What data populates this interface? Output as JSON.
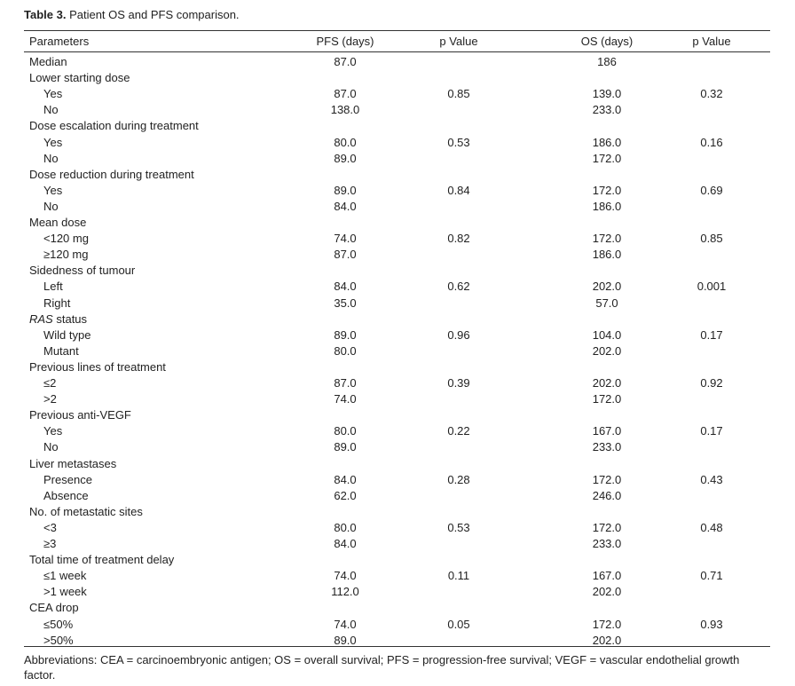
{
  "caption": {
    "label": "Table 3.",
    "text": " Patient OS and PFS comparison."
  },
  "headers": {
    "parameters": "Parameters",
    "pfs": "PFS (days)",
    "pfs_p": "p Value",
    "os": "OS (days)",
    "os_p": "p Value"
  },
  "rows": [
    {
      "param": "Median",
      "sub": false,
      "pfs": "87.0",
      "pfs_p": "",
      "os": "186",
      "os_p": ""
    },
    {
      "param": "Lower starting dose",
      "sub": false,
      "pfs": "",
      "pfs_p": "",
      "os": "",
      "os_p": ""
    },
    {
      "param": "Yes",
      "sub": true,
      "pfs": "87.0",
      "pfs_p": "0.85",
      "os": "139.0",
      "os_p": "0.32"
    },
    {
      "param": "No",
      "sub": true,
      "pfs": "138.0",
      "pfs_p": "",
      "os": "233.0",
      "os_p": ""
    },
    {
      "param": "Dose escalation during treatment",
      "sub": false,
      "pfs": "",
      "pfs_p": "",
      "os": "",
      "os_p": ""
    },
    {
      "param": "Yes",
      "sub": true,
      "pfs": "80.0",
      "pfs_p": "0.53",
      "os": "186.0",
      "os_p": "0.16"
    },
    {
      "param": "No",
      "sub": true,
      "pfs": "89.0",
      "pfs_p": "",
      "os": "172.0",
      "os_p": ""
    },
    {
      "param": "Dose reduction during treatment",
      "sub": false,
      "pfs": "",
      "pfs_p": "",
      "os": "",
      "os_p": ""
    },
    {
      "param": "Yes",
      "sub": true,
      "pfs": "89.0",
      "pfs_p": "0.84",
      "os": "172.0",
      "os_p": "0.69"
    },
    {
      "param": "No",
      "sub": true,
      "pfs": "84.0",
      "pfs_p": "",
      "os": "186.0",
      "os_p": ""
    },
    {
      "param": "Mean dose",
      "sub": false,
      "pfs": "",
      "pfs_p": "",
      "os": "",
      "os_p": ""
    },
    {
      "param": "<120 mg",
      "sub": true,
      "pfs": "74.0",
      "pfs_p": "0.82",
      "os": "172.0",
      "os_p": "0.85"
    },
    {
      "param": "≥120 mg",
      "sub": true,
      "pfs": "87.0",
      "pfs_p": "",
      "os": "186.0",
      "os_p": ""
    },
    {
      "param": "Sidedness of tumour",
      "sub": false,
      "pfs": "",
      "pfs_p": "",
      "os": "",
      "os_p": ""
    },
    {
      "param": "Left",
      "sub": true,
      "pfs": "84.0",
      "pfs_p": "0.62",
      "os": "202.0",
      "os_p": "0.001"
    },
    {
      "param": "Right",
      "sub": true,
      "pfs": "35.0",
      "pfs_p": "",
      "os": "57.0",
      "os_p": ""
    },
    {
      "param": "RAS",
      "param_suffix": " status",
      "italic_prefix": true,
      "sub": false,
      "pfs": "",
      "pfs_p": "",
      "os": "",
      "os_p": ""
    },
    {
      "param": "Wild type",
      "sub": true,
      "pfs": "89.0",
      "pfs_p": "0.96",
      "os": "104.0",
      "os_p": "0.17"
    },
    {
      "param": "Mutant",
      "sub": true,
      "pfs": "80.0",
      "pfs_p": "",
      "os": "202.0",
      "os_p": ""
    },
    {
      "param": "Previous lines of treatment",
      "sub": false,
      "pfs": "",
      "pfs_p": "",
      "os": "",
      "os_p": ""
    },
    {
      "param": "≤2",
      "sub": true,
      "pfs": "87.0",
      "pfs_p": "0.39",
      "os": "202.0",
      "os_p": "0.92"
    },
    {
      "param": ">2",
      "sub": true,
      "pfs": "74.0",
      "pfs_p": "",
      "os": "172.0",
      "os_p": ""
    },
    {
      "param": "Previous anti-VEGF",
      "sub": false,
      "pfs": "",
      "pfs_p": "",
      "os": "",
      "os_p": ""
    },
    {
      "param": "Yes",
      "sub": true,
      "pfs": "80.0",
      "pfs_p": "0.22",
      "os": "167.0",
      "os_p": "0.17"
    },
    {
      "param": "No",
      "sub": true,
      "pfs": "89.0",
      "pfs_p": "",
      "os": "233.0",
      "os_p": ""
    },
    {
      "param": "Liver metastases",
      "sub": false,
      "pfs": "",
      "pfs_p": "",
      "os": "",
      "os_p": ""
    },
    {
      "param": "Presence",
      "sub": true,
      "pfs": "84.0",
      "pfs_p": "0.28",
      "os": "172.0",
      "os_p": "0.43"
    },
    {
      "param": "Absence",
      "sub": true,
      "pfs": "62.0",
      "pfs_p": "",
      "os": "246.0",
      "os_p": ""
    },
    {
      "param": "No. of metastatic sites",
      "sub": false,
      "pfs": "",
      "pfs_p": "",
      "os": "",
      "os_p": ""
    },
    {
      "param": "<3",
      "sub": true,
      "pfs": "80.0",
      "pfs_p": "0.53",
      "os": "172.0",
      "os_p": "0.48"
    },
    {
      "param": "≥3",
      "sub": true,
      "pfs": "84.0",
      "pfs_p": "",
      "os": "233.0",
      "os_p": ""
    },
    {
      "param": "Total time of treatment delay",
      "sub": false,
      "pfs": "",
      "pfs_p": "",
      "os": "",
      "os_p": ""
    },
    {
      "param": "≤1 week",
      "sub": true,
      "pfs": "74.0",
      "pfs_p": "0.11",
      "os": "167.0",
      "os_p": "0.71"
    },
    {
      "param": ">1 week",
      "sub": true,
      "pfs": "112.0",
      "pfs_p": "",
      "os": "202.0",
      "os_p": ""
    },
    {
      "param": "CEA drop",
      "sub": false,
      "pfs": "",
      "pfs_p": "",
      "os": "",
      "os_p": ""
    },
    {
      "param": "≤50%",
      "sub": true,
      "pfs": "74.0",
      "pfs_p": "0.05",
      "os": "172.0",
      "os_p": "0.93"
    },
    {
      "param": ">50%",
      "sub": true,
      "pfs": "89.0",
      "pfs_p": "",
      "os": "202.0",
      "os_p": ""
    }
  ],
  "footnote": "Abbreviations: CEA = carcinoembryonic antigen; OS = overall survival; PFS = progression-free survival; VEGF = vascular endothelial growth factor."
}
